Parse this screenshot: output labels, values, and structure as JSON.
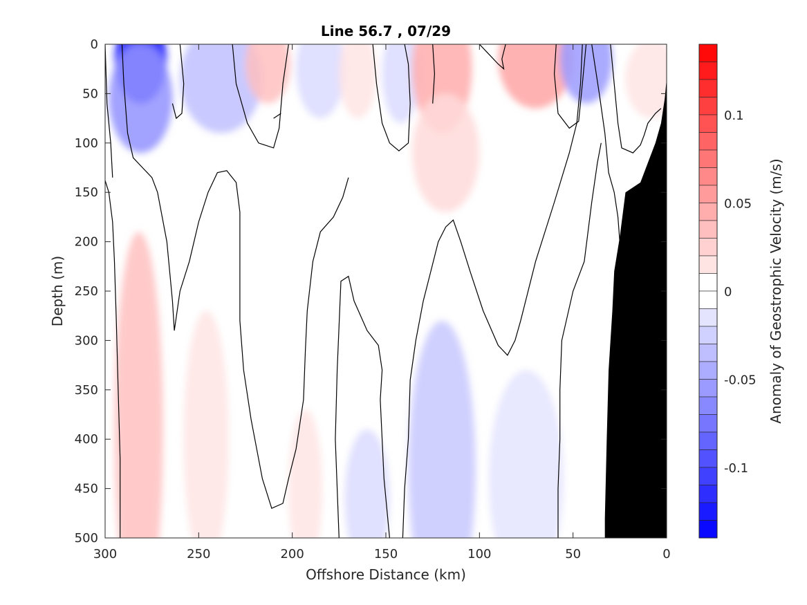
{
  "chart_data": {
    "type": "heatmap",
    "title": "Line 56.7 , 07/29",
    "xlabel": "Offshore Distance (km)",
    "ylabel": "Depth (m)",
    "colorbar_label": "Anomaly of Geostrophic Velocity (m/s)",
    "xlim": [
      300,
      0
    ],
    "ylim": [
      0,
      500
    ],
    "x_reversed": true,
    "y_reversed": true,
    "x_ticks": [
      300,
      250,
      200,
      150,
      100,
      50,
      0
    ],
    "y_ticks": [
      0,
      50,
      100,
      150,
      200,
      250,
      300,
      350,
      400,
      450,
      500
    ],
    "colorbar_range": [
      -0.14,
      0.14
    ],
    "colorbar_levels": 28,
    "colorbar_ticks": [
      {
        "value": 0.1,
        "label": "0.1"
      },
      {
        "value": 0.05,
        "label": "0.05"
      },
      {
        "value": 0,
        "label": "0"
      },
      {
        "value": -0.05,
        "label": "-0.05"
      },
      {
        "value": -0.1,
        "label": "-0.1"
      }
    ],
    "colormap": {
      "negative": "#0000ff",
      "zero": "#ffffff",
      "positive": "#ff0000"
    },
    "land_color": "#000000",
    "zero_contour_color": "#000000",
    "anomaly_features": [
      {
        "x": 281,
        "depth": 15,
        "rx": 14,
        "rd": 45,
        "value": -0.125
      },
      {
        "x": 281,
        "depth": 55,
        "rx": 17,
        "rd": 55,
        "value": -0.06
      },
      {
        "x": 238,
        "depth": 35,
        "rx": 22,
        "rd": 55,
        "value": -0.035
      },
      {
        "x": 213,
        "depth": 20,
        "rx": 12,
        "rd": 40,
        "value": 0.035
      },
      {
        "x": 185,
        "depth": 25,
        "rx": 13,
        "rd": 50,
        "value": -0.02
      },
      {
        "x": 165,
        "depth": 30,
        "rx": 10,
        "rd": 45,
        "value": 0.015
      },
      {
        "x": 142,
        "depth": 30,
        "rx": 10,
        "rd": 50,
        "value": -0.02
      },
      {
        "x": 120,
        "depth": 25,
        "rx": 16,
        "rd": 65,
        "value": 0.045
      },
      {
        "x": 118,
        "depth": 110,
        "rx": 18,
        "rd": 60,
        "value": 0.02
      },
      {
        "x": 70,
        "depth": 15,
        "rx": 20,
        "rd": 50,
        "value": 0.05
      },
      {
        "x": 43,
        "depth": 15,
        "rx": 14,
        "rd": 45,
        "value": -0.055
      },
      {
        "x": 8,
        "depth": 35,
        "rx": 14,
        "rd": 40,
        "value": 0.015
      },
      {
        "x": 282,
        "depth": 390,
        "rx": 13,
        "rd": 200,
        "value": 0.035
      },
      {
        "x": 246,
        "depth": 400,
        "rx": 12,
        "rd": 130,
        "value": 0.015
      },
      {
        "x": 193,
        "depth": 450,
        "rx": 9,
        "rd": 80,
        "value": 0.015
      },
      {
        "x": 120,
        "depth": 430,
        "rx": 18,
        "rd": 150,
        "value": -0.03
      },
      {
        "x": 160,
        "depth": 460,
        "rx": 12,
        "rd": 70,
        "value": -0.02
      },
      {
        "x": 75,
        "depth": 440,
        "rx": 20,
        "rd": 110,
        "value": -0.015
      }
    ],
    "zero_contours": [
      [
        [
          291,
          0
        ],
        [
          290,
          40
        ],
        [
          288,
          90
        ],
        [
          285,
          115
        ],
        [
          280,
          125
        ],
        [
          275,
          135
        ],
        [
          272,
          150
        ],
        [
          269,
          180
        ],
        [
          267,
          200
        ],
        [
          265,
          240
        ],
        [
          264,
          260
        ],
        [
          263,
          290
        ],
        [
          260,
          250
        ],
        [
          255,
          220
        ],
        [
          250,
          180
        ],
        [
          245,
          150
        ],
        [
          240,
          130
        ],
        [
          235,
          128
        ],
        [
          230,
          140
        ],
        [
          228,
          170
        ],
        [
          228,
          220
        ],
        [
          228,
          280
        ],
        [
          226,
          330
        ],
        [
          222,
          380
        ],
        [
          216,
          440
        ],
        [
          211,
          470
        ],
        [
          205,
          465
        ],
        [
          202,
          440
        ],
        [
          198,
          410
        ],
        [
          194,
          360
        ],
        [
          193,
          310
        ],
        [
          192,
          270
        ],
        [
          189,
          220
        ],
        [
          185,
          190
        ],
        [
          178,
          175
        ],
        [
          173,
          155
        ],
        [
          170,
          135
        ]
      ],
      [
        [
          260,
          0
        ],
        [
          258,
          40
        ],
        [
          259,
          70
        ],
        [
          262,
          75
        ],
        [
          264,
          60
        ]
      ],
      [
        [
          232,
          0
        ],
        [
          230,
          40
        ],
        [
          224,
          80
        ],
        [
          218,
          100
        ],
        [
          210,
          105
        ],
        [
          207,
          85
        ],
        [
          205,
          40
        ],
        [
          202,
          0
        ]
      ],
      [
        [
          157,
          0
        ],
        [
          155,
          40
        ],
        [
          152,
          80
        ],
        [
          148,
          100
        ],
        [
          143,
          108
        ],
        [
          138,
          100
        ],
        [
          137,
          60
        ],
        [
          138,
          20
        ],
        [
          140,
          0
        ]
      ],
      [
        [
          125,
          0
        ],
        [
          124,
          30
        ],
        [
          125,
          60
        ]
      ],
      [
        [
          100,
          0
        ],
        [
          95,
          10
        ],
        [
          90,
          20
        ],
        [
          87,
          25
        ],
        [
          88,
          15
        ],
        [
          86,
          0
        ]
      ],
      [
        [
          59,
          0
        ],
        [
          60,
          30
        ],
        [
          58,
          70
        ],
        [
          52,
          85
        ],
        [
          47,
          78
        ],
        [
          45,
          40
        ],
        [
          43,
          0
        ]
      ],
      [
        [
          30,
          0
        ],
        [
          28,
          40
        ],
        [
          26,
          80
        ],
        [
          24,
          105
        ],
        [
          18,
          110
        ],
        [
          14,
          102
        ],
        [
          12,
          92
        ],
        [
          10,
          80
        ],
        [
          6,
          70
        ],
        [
          3,
          65
        ]
      ],
      [
        [
          35,
          100
        ],
        [
          37,
          120
        ],
        [
          40,
          160
        ],
        [
          44,
          220
        ],
        [
          50,
          250
        ],
        [
          56,
          300
        ],
        [
          57,
          350
        ],
        [
          57,
          400
        ],
        [
          58,
          450
        ],
        [
          58,
          500
        ]
      ],
      [
        [
          210,
          75
        ],
        [
          206,
          70
        ]
      ],
      [
        [
          175,
          500
        ],
        [
          176,
          450
        ],
        [
          177,
          400
        ],
        [
          176,
          330
        ],
        [
          174,
          240
        ],
        [
          170,
          235
        ],
        [
          167,
          260
        ],
        [
          160,
          290
        ],
        [
          154,
          305
        ],
        [
          152,
          330
        ],
        [
          153,
          360
        ],
        [
          152,
          400
        ],
        [
          151,
          440
        ],
        [
          150,
          460
        ],
        [
          148,
          500
        ]
      ],
      [
        [
          141,
          500
        ],
        [
          140,
          450
        ],
        [
          138,
          400
        ],
        [
          137,
          340
        ],
        [
          134,
          300
        ],
        [
          130,
          260
        ],
        [
          126,
          230
        ],
        [
          122,
          200
        ],
        [
          118,
          185
        ],
        [
          114,
          178
        ],
        [
          110,
          200
        ],
        [
          105,
          230
        ],
        [
          98,
          270
        ],
        [
          90,
          305
        ],
        [
          85,
          315
        ],
        [
          81,
          300
        ],
        [
          78,
          280
        ],
        [
          70,
          220
        ],
        [
          60,
          160
        ],
        [
          52,
          110
        ],
        [
          48,
          80
        ],
        [
          46,
          40
        ],
        [
          45,
          0
        ]
      ],
      [
        [
          40,
          0
        ],
        [
          36,
          50
        ],
        [
          33,
          90
        ],
        [
          31,
          130
        ],
        [
          28,
          150
        ],
        [
          26,
          175
        ],
        [
          25,
          200
        ],
        [
          26,
          220
        ]
      ],
      [
        [
          300,
          138
        ],
        [
          298,
          150
        ],
        [
          296,
          180
        ],
        [
          295,
          220
        ],
        [
          294,
          280
        ],
        [
          293,
          350
        ],
        [
          292,
          420
        ],
        [
          292,
          500
        ]
      ],
      [
        [
          300,
          0
        ],
        [
          299,
          60
        ],
        [
          297,
          100
        ],
        [
          296,
          135
        ]
      ]
    ],
    "land_polygon": [
      [
        0,
        35
      ],
      [
        0,
        500
      ],
      [
        33,
        500
      ],
      [
        33,
        480
      ],
      [
        32,
        400
      ],
      [
        31,
        330
      ],
      [
        29,
        270
      ],
      [
        28,
        230
      ],
      [
        25,
        195
      ],
      [
        22,
        150
      ],
      [
        14,
        140
      ],
      [
        10,
        120
      ],
      [
        6,
        100
      ],
      [
        3,
        80
      ],
      [
        1,
        55
      ]
    ]
  }
}
